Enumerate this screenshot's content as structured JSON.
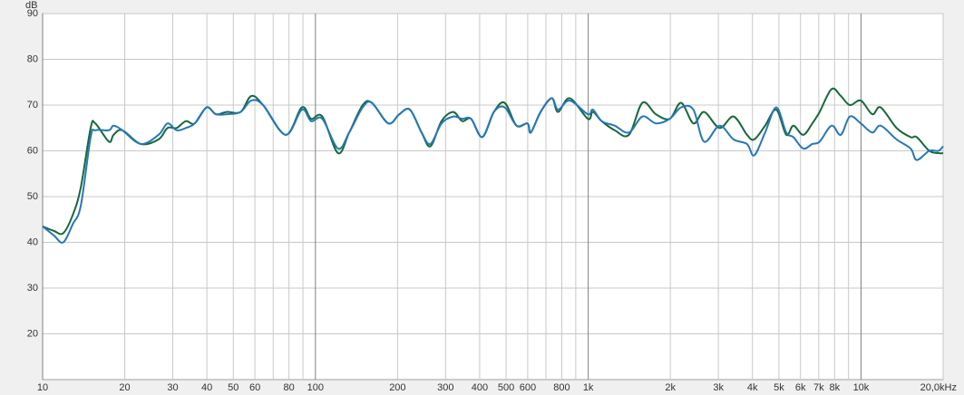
{
  "chart_data": {
    "type": "line",
    "y_label": "dB",
    "x": [
      10,
      11,
      11.9,
      12.9,
      13.8,
      15,
      15.6,
      17.5,
      18.2,
      19.6,
      22.9,
      26.6,
      28.7,
      31,
      33.5,
      36.1,
      39.9,
      43.2,
      47.3,
      53.2,
      58.2,
      64.3,
      77.8,
      89.2,
      96.4,
      106,
      121,
      133,
      149,
      161,
      185,
      203,
      222,
      245,
      264,
      290,
      320,
      345,
      372,
      409,
      451,
      494,
      546,
      599,
      616,
      669,
      735,
      775,
      856,
      997,
      1040,
      1120,
      1250,
      1410,
      1580,
      1770,
      1990,
      2190,
      2430,
      2660,
      3030,
      3410,
      3820,
      4060,
      4450,
      4890,
      5320,
      5650,
      6140,
      6630,
      7050,
      7800,
      8430,
      9100,
      9980,
      11000,
      11800,
      13500,
      15200,
      16000,
      17800,
      19200,
      20000
    ],
    "series": [
      {
        "name": "green",
        "color": "#17683a",
        "values": [
          43.5,
          42.5,
          42,
          46,
          52,
          65,
          66,
          62,
          63.5,
          64.5,
          61.5,
          62.5,
          65,
          65,
          66.5,
          66,
          69.5,
          68,
          68.5,
          68.5,
          72,
          70,
          63.5,
          69.5,
          67,
          67.5,
          59.5,
          64,
          70,
          70.5,
          66,
          68,
          69,
          64,
          61,
          66.5,
          68.5,
          66.5,
          67,
          63,
          68.5,
          70.5,
          65.5,
          66,
          64,
          68.5,
          71.5,
          68.5,
          71.5,
          67,
          68.5,
          66.5,
          64.5,
          63.5,
          70.5,
          68,
          67,
          70.5,
          66,
          68.5,
          65,
          67.5,
          63.5,
          62.5,
          65.5,
          69,
          63.5,
          65.5,
          63.5,
          66,
          68.5,
          73.5,
          72,
          70,
          71,
          68,
          69.5,
          65,
          63,
          63,
          60,
          59.5,
          59.5
        ]
      },
      {
        "name": "blue",
        "color": "#2677b8",
        "values": [
          43.5,
          41.5,
          40,
          44,
          48,
          63,
          64.5,
          64.5,
          65.5,
          64.5,
          61.5,
          63.5,
          66,
          64.5,
          65,
          66,
          69.5,
          68,
          68,
          68.5,
          71,
          70,
          63.5,
          69,
          66.5,
          67,
          60.5,
          64,
          69.5,
          70.5,
          66,
          68,
          69,
          64,
          61.5,
          66,
          67.5,
          67,
          67,
          63,
          68.5,
          69.5,
          65.5,
          66,
          64,
          68.5,
          71.5,
          69,
          71,
          68,
          69,
          66.5,
          65.5,
          64,
          67.5,
          66,
          67,
          69.5,
          69,
          62,
          65.5,
          62.5,
          61.5,
          59,
          64,
          69.5,
          64,
          63,
          60.5,
          61.5,
          62,
          65.5,
          63.5,
          67.5,
          66,
          64,
          65.5,
          62.5,
          60.5,
          58,
          60,
          60,
          61
        ]
      }
    ],
    "log_x": true,
    "xlim": [
      10,
      20000
    ],
    "ylim": [
      10,
      90
    ],
    "xticks": [
      10,
      20,
      30,
      40,
      50,
      60,
      80,
      100,
      200,
      300,
      400,
      500,
      600,
      800,
      {
        "value": 1000,
        "label": "1k"
      },
      {
        "value": 2000,
        "label": "2k"
      },
      {
        "value": 3000,
        "label": "3k"
      },
      {
        "value": 4000,
        "label": "4k"
      },
      {
        "value": 5000,
        "label": "5k"
      },
      {
        "value": 6000,
        "label": "6k"
      },
      {
        "value": 7000,
        "label": "7k"
      },
      {
        "value": 8000,
        "label": "8k"
      },
      {
        "value": 10000,
        "label": "10k"
      },
      {
        "value": 20000,
        "label": "20,0kHz"
      }
    ],
    "xminor": [
      70,
      90,
      700,
      900,
      9000
    ],
    "yticks": [
      20,
      30,
      40,
      50,
      60,
      70,
      80,
      90
    ],
    "grid": true
  }
}
